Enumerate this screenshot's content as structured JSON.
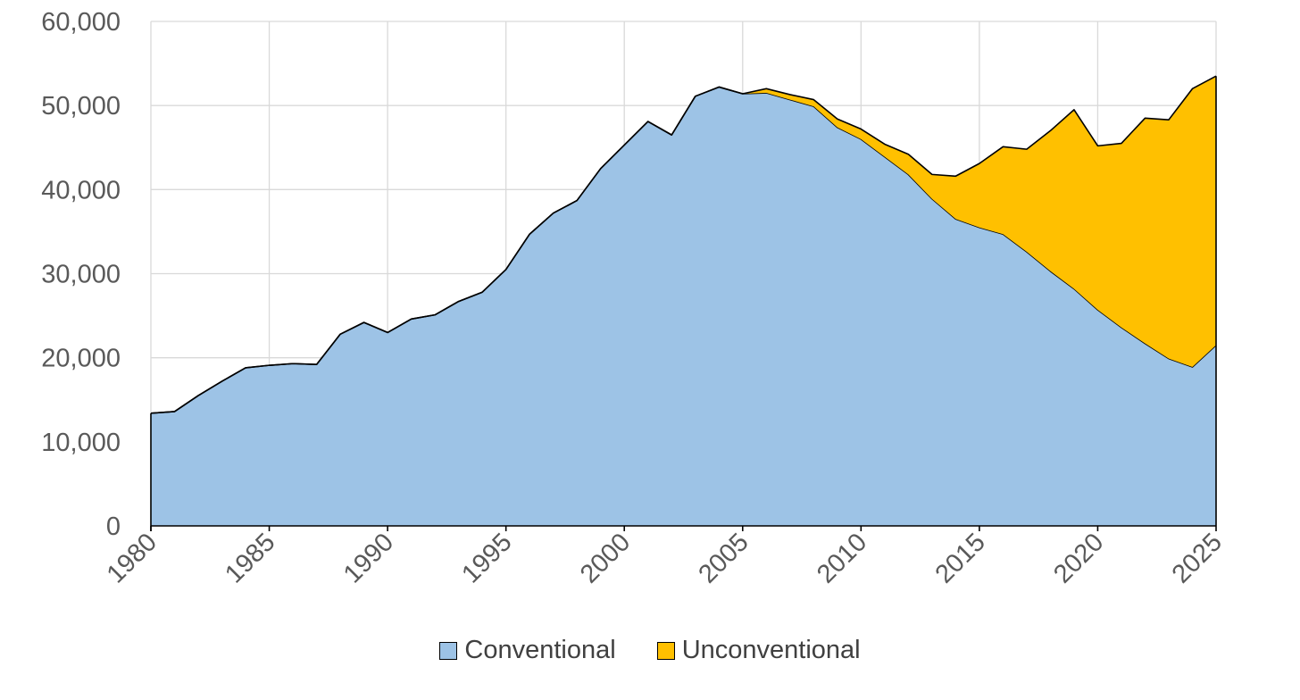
{
  "chart_data": {
    "type": "area",
    "stacked": true,
    "x": [
      1980,
      1981,
      1982,
      1983,
      1984,
      1985,
      1986,
      1987,
      1988,
      1989,
      1990,
      1991,
      1992,
      1993,
      1994,
      1995,
      1996,
      1997,
      1998,
      1999,
      2000,
      2001,
      2002,
      2003,
      2004,
      2005,
      2006,
      2007,
      2008,
      2009,
      2010,
      2011,
      2012,
      2013,
      2014,
      2015,
      2016,
      2017,
      2018,
      2019,
      2020,
      2021,
      2022,
      2023,
      2024,
      2025
    ],
    "series": [
      {
        "name": "Conventional",
        "color": "#9DC3E6",
        "values": [
          13400,
          13600,
          15500,
          17200,
          18800,
          19100,
          19300,
          19200,
          22800,
          24200,
          23000,
          24600,
          25100,
          26700,
          27800,
          30500,
          34700,
          37200,
          38700,
          42500,
          45300,
          48100,
          46500,
          51100,
          52200,
          51400,
          51500,
          50700,
          49900,
          47400,
          46000,
          43900,
          41800,
          38900,
          36500,
          35500,
          34700,
          32600,
          30300,
          28200,
          25700,
          23600,
          21700,
          19900,
          18900,
          21500
        ]
      },
      {
        "name": "Unconventional",
        "color": "#FFC000",
        "values": [
          0,
          0,
          0,
          0,
          0,
          0,
          0,
          0,
          0,
          0,
          0,
          0,
          0,
          0,
          0,
          0,
          0,
          0,
          0,
          0,
          0,
          0,
          0,
          0,
          0,
          0,
          500,
          600,
          800,
          1000,
          1200,
          1500,
          2400,
          2900,
          5100,
          7600,
          10400,
          12200,
          16700,
          21300,
          19500,
          21900,
          26800,
          28400,
          33100,
          32000
        ]
      }
    ],
    "xlabel": "",
    "ylabel": "",
    "ylim": [
      0,
      60000
    ],
    "xlim": [
      1980,
      2025
    ],
    "y_ticks": [
      "0",
      "10,000",
      "20,000",
      "30,000",
      "40,000",
      "50,000",
      "60,000"
    ],
    "x_ticks": [
      "1980",
      "1985",
      "1990",
      "1995",
      "2000",
      "2005",
      "2010",
      "2015",
      "2020",
      "2025"
    ],
    "grid": true,
    "legend_position": "bottom"
  }
}
